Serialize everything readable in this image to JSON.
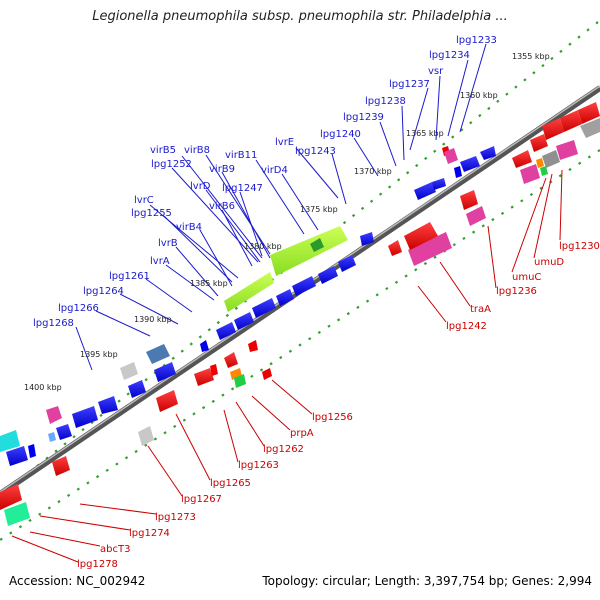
{
  "title": "Legionella pneumophila subsp. pneumophila str. Philadelphia ...",
  "footer": {
    "accession": "Accession: NC_002942",
    "topology": "Topology: circular; Length: 3,397,754 bp; Genes: 2,994"
  },
  "colors": {
    "backbone": "#8c8c8c",
    "tick": "#33a02c",
    "forward_label": "#1a1acc",
    "reverse_label": "#cc0000",
    "gene_forward": "#0000ee",
    "gene_reverse": "#ee0000"
  },
  "kbp_ticks": [
    "1355 kbp",
    "1360 kbp",
    "1365 kbp",
    "1370 kbp",
    "1375 kbp",
    "1380 kbp",
    "1385 kbp",
    "1390 kbp",
    "1395 kbp",
    "1400 kbp"
  ],
  "forward_labels": [
    "lpg1233",
    "lpg1234",
    "vsr",
    "lpg1237",
    "lpg1238",
    "lpg1239",
    "lpg1240",
    "lvrE",
    "lpg1243",
    "virD4",
    "virB11",
    "virB8",
    "virB5",
    "lpg1252",
    "virB9",
    "lvrD",
    "lpg1247",
    "virB6",
    "lvrC",
    "lpg1255",
    "virB4",
    "lvrB",
    "lvrA",
    "lpg1261",
    "lpg1264",
    "lpg1266",
    "lpg1268"
  ],
  "reverse_labels": [
    "lpg1230",
    "umuD",
    "umuC",
    "lpg1236",
    "traA",
    "lpg1242",
    "lpg1256",
    "prpA",
    "lpg1262",
    "lpg1263",
    "lpg1265",
    "lpg1267",
    "lpg1273",
    "lpg1274",
    "abcT3",
    "lpg1278"
  ]
}
